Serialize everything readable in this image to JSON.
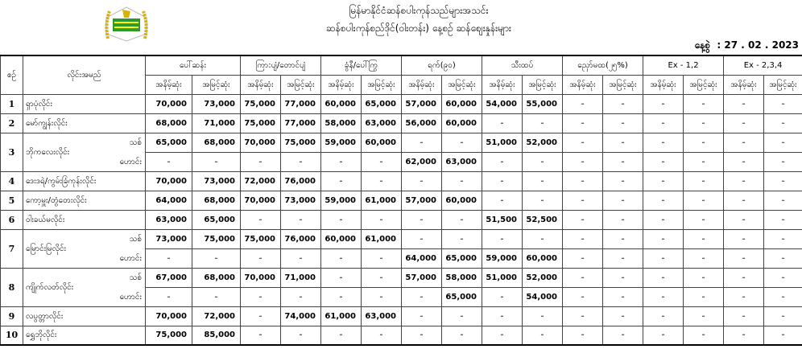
{
  "header": {
    "line1": "မြန်မာနိုင်ငံဆန်စပါးကုန်သည်များအသင်း",
    "line2": "ဆန်စပါးကုန်စည်ဒိုင်(ဝါးတန်း) နေ့စဉ် ဆန်စျေးနှုန်းများ",
    "date_label": "နေ့စွဲ",
    "date": "27 . 02 . 2023"
  },
  "colors": {
    "logo_green": "#2e9a2e",
    "logo_gold": "#d8b400"
  },
  "table": {
    "col_no": "စဉ်",
    "col_name": "လိုင်းအမည်",
    "groups": [
      "ပေါ်ဆန်း",
      "ကြာ:ပျံ/တောင်ပျံ",
      "ခွံနီ/ပေါ်ကြွ",
      "ရက်(၉၀)",
      "သီးထပ်",
      "ညှော်မထ(၂၅%)",
      "Ex - 1,2",
      "Ex - 2,3,4"
    ],
    "min": "အနိမ့်ဆုံး",
    "max": "အမြင့်ဆုံး",
    "rows": [
      {
        "no": "1",
        "name": "ရှာပုံလိုင်း",
        "subs": [
          {
            "label": "",
            "values": [
              "70,000",
              "73,000",
              "75,000",
              "77,000",
              "60,000",
              "65,000",
              "57,000",
              "60,000",
              "54,000",
              "55,000",
              "-",
              "-",
              "-",
              "-",
              "-",
              "-"
            ]
          }
        ]
      },
      {
        "no": "2",
        "name": "မော်ကျွန်းလိုင်း",
        "subs": [
          {
            "label": "",
            "values": [
              "68,000",
              "71,000",
              "75,000",
              "77,000",
              "58,000",
              "63,000",
              "56,000",
              "60,000",
              "-",
              "-",
              "-",
              "-",
              "-",
              "-",
              "-",
              "-"
            ]
          }
        ]
      },
      {
        "no": "3",
        "name": "ဘိုကလေးလိုင်း",
        "subs": [
          {
            "label": "သစ်",
            "values": [
              "65,000",
              "68,000",
              "70,000",
              "75,000",
              "59,000",
              "60,000",
              "-",
              "-",
              "51,000",
              "52,000",
              "-",
              "-",
              "-",
              "-",
              "-",
              "-"
            ]
          },
          {
            "label": "ဟောင်း",
            "values": [
              "-",
              "-",
              "-",
              "-",
              "-",
              "-",
              "62,000",
              "63,000",
              "-",
              "-",
              "-",
              "-",
              "-",
              "-",
              "-",
              "-"
            ]
          }
        ]
      },
      {
        "no": "4",
        "name": "ဒေးဒရဲ/ကွမ်းခြံကုန်းလိုင်း",
        "subs": [
          {
            "label": "",
            "values": [
              "70,000",
              "73,000",
              "72,000",
              "76,000",
              "-",
              "-",
              "-",
              "-",
              "-",
              "-",
              "-",
              "-",
              "-",
              "-",
              "-",
              "-"
            ]
          }
        ]
      },
      {
        "no": "5",
        "name": "ကော့မှူး/တွံတေးလိုင်း",
        "subs": [
          {
            "label": "",
            "values": [
              "64,000",
              "68,000",
              "70,000",
              "73,000",
              "59,000",
              "61,000",
              "57,000",
              "60,000",
              "-",
              "-",
              "-",
              "-",
              "-",
              "-",
              "-",
              "-"
            ]
          }
        ]
      },
      {
        "no": "6",
        "name": "ဝါးခယ်မလိုင်း",
        "subs": [
          {
            "label": "",
            "values": [
              "63,000",
              "65,000",
              "-",
              "-",
              "-",
              "-",
              "-",
              "-",
              "51,500",
              "52,500",
              "-",
              "-",
              "-",
              "-",
              "-",
              "-"
            ]
          }
        ]
      },
      {
        "no": "7",
        "name": "မြောင်းမြလိုင်း",
        "subs": [
          {
            "label": "သစ်",
            "values": [
              "73,000",
              "75,000",
              "75,000",
              "76,000",
              "60,000",
              "61,000",
              "-",
              "-",
              "-",
              "-",
              "-",
              "-",
              "-",
              "-",
              "-",
              "-"
            ]
          },
          {
            "label": "ဟောင်း",
            "values": [
              "-",
              "-",
              "-",
              "-",
              "-",
              "-",
              "64,000",
              "65,000",
              "59,000",
              "60,000",
              "-",
              "-",
              "-",
              "-",
              "-",
              "-"
            ]
          }
        ]
      },
      {
        "no": "8",
        "name": "ကျိုက်လတ်လိုင်း",
        "subs": [
          {
            "label": "သစ်",
            "values": [
              "67,000",
              "68,000",
              "70,000",
              "71,000",
              "-",
              "-",
              "57,000",
              "58,000",
              "51,000",
              "52,000",
              "-",
              "-",
              "-",
              "-",
              "-",
              "-"
            ]
          },
          {
            "label": "ဟောင်း",
            "values": [
              "-",
              "-",
              "-",
              "-",
              "-",
              "-",
              "-",
              "65,000",
              "-",
              "54,000",
              "-",
              "-",
              "-",
              "-",
              "-",
              "-"
            ]
          }
        ]
      },
      {
        "no": "9",
        "name": "လပွတ္တာလိုင်း",
        "subs": [
          {
            "label": "",
            "values": [
              "70,000",
              "72,000",
              "-",
              "74,000",
              "61,000",
              "63,000",
              "-",
              "-",
              "-",
              "-",
              "-",
              "-",
              "-",
              "-",
              "-",
              "-"
            ]
          }
        ]
      },
      {
        "no": "10",
        "name": "ရွှေဘိုလိုင်း",
        "subs": [
          {
            "label": "",
            "values": [
              "75,000",
              "85,000",
              "-",
              "-",
              "-",
              "-",
              "-",
              "-",
              "-",
              "-",
              "-",
              "-",
              "-",
              "-",
              "-",
              "-"
            ]
          }
        ]
      }
    ]
  }
}
